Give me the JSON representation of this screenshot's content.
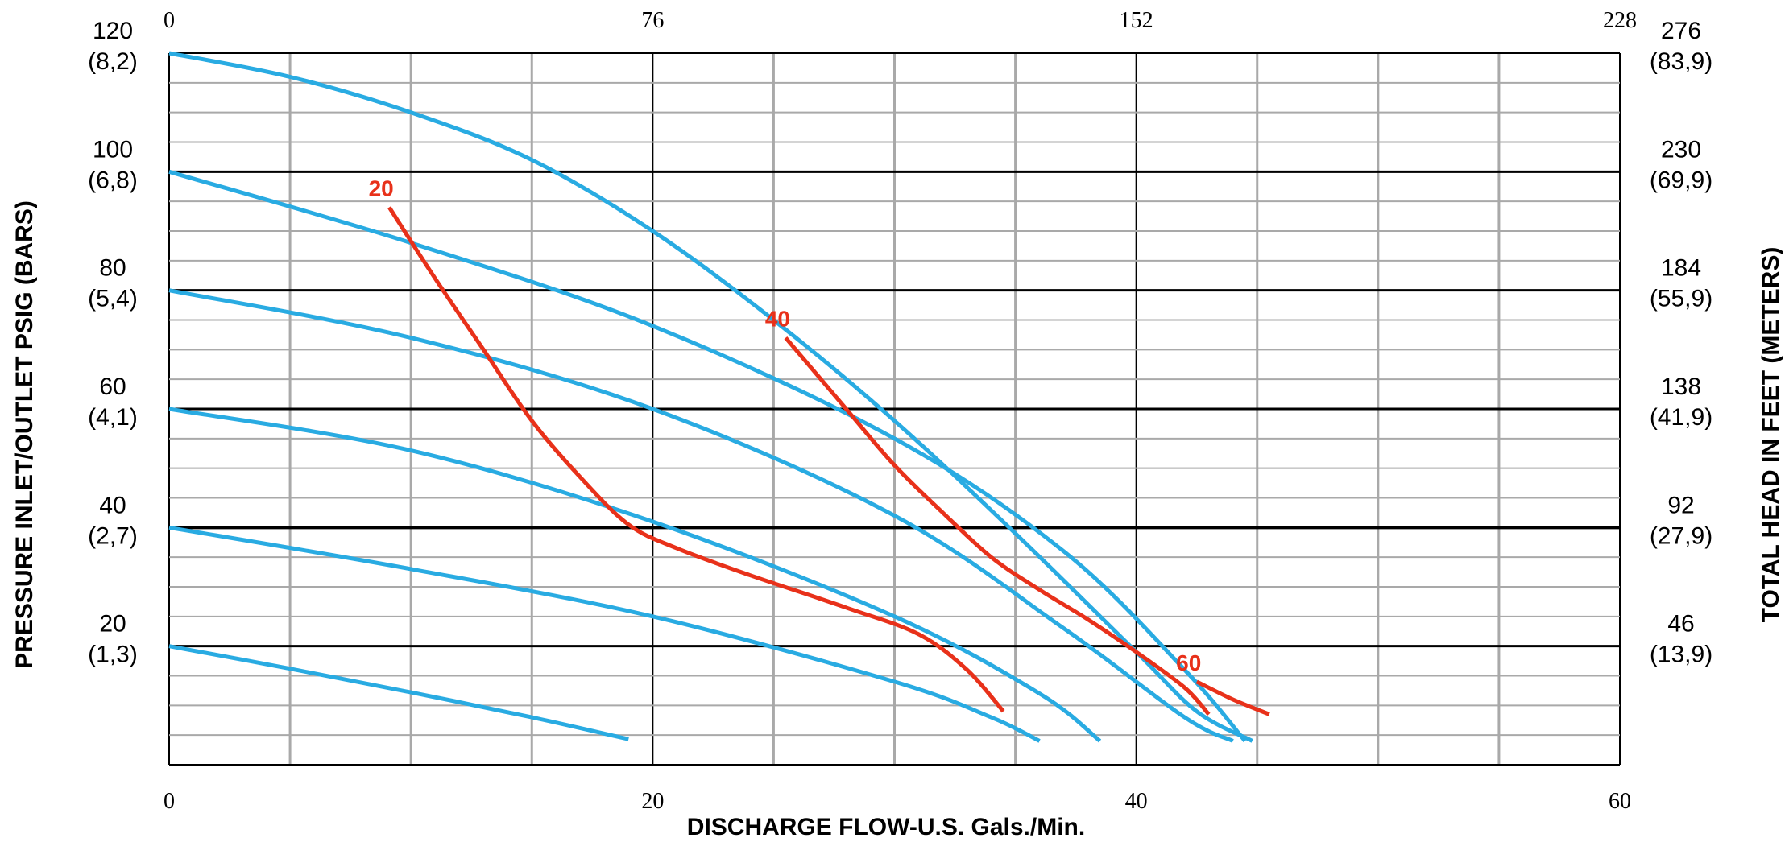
{
  "chart_data": {
    "type": "line",
    "xlabel": "DISCHARGE FLOW-U.S. Gals./Min.",
    "ylabel_left": "PRESSURE INLET/OUTLET PSIG (BARS)",
    "ylabel_right": "TOTAL HEAD IN FEET (METERS)",
    "xlim": [
      0,
      60
    ],
    "ylim": [
      0,
      120
    ],
    "x_ticks": [
      "0",
      "20",
      "40",
      "60"
    ],
    "x_top_ticks": [
      "0",
      "76",
      "152",
      "228"
    ],
    "y_left_ticks": [
      {
        "psig": "20",
        "bar": "(1,3)"
      },
      {
        "psig": "40",
        "bar": "(2,7)"
      },
      {
        "psig": "60",
        "bar": "(4,1)"
      },
      {
        "psig": "80",
        "bar": "(5,4)"
      },
      {
        "psig": "100",
        "bar": "(6,8)"
      },
      {
        "psig": "120",
        "bar": "(8,2)"
      }
    ],
    "y_right_ticks": [
      {
        "feet": "46",
        "meters": "(13,9)"
      },
      {
        "feet": "92",
        "meters": "(27,9)"
      },
      {
        "feet": "138",
        "meters": "(41,9)"
      },
      {
        "feet": "184",
        "meters": "(55,9)"
      },
      {
        "feet": "230",
        "meters": "(69,9)"
      },
      {
        "feet": "276",
        "meters": "(83,9)"
      }
    ],
    "grid": true,
    "colors": {
      "pressure_curves": "#29abe2",
      "air_curves": "#e8311a"
    },
    "series": [
      {
        "group": "pressure",
        "points": [
          [
            0,
            20
          ],
          [
            5,
            16.2
          ],
          [
            10,
            12.2
          ],
          [
            15,
            8
          ],
          [
            19,
            4.3
          ]
        ]
      },
      {
        "group": "pressure",
        "points": [
          [
            0,
            40
          ],
          [
            10,
            33
          ],
          [
            20,
            25
          ],
          [
            30,
            14
          ],
          [
            34,
            8
          ],
          [
            36,
            4
          ]
        ]
      },
      {
        "group": "pressure",
        "points": [
          [
            0,
            60
          ],
          [
            10,
            53
          ],
          [
            20,
            41
          ],
          [
            30,
            25
          ],
          [
            36,
            12
          ],
          [
            38.5,
            4
          ]
        ]
      },
      {
        "group": "pressure",
        "points": [
          [
            0,
            80
          ],
          [
            10,
            72
          ],
          [
            20,
            60
          ],
          [
            30,
            42
          ],
          [
            37,
            23
          ],
          [
            42,
            8
          ],
          [
            44,
            4
          ]
        ]
      },
      {
        "group": "pressure",
        "points": [
          [
            0,
            100
          ],
          [
            10,
            88
          ],
          [
            20,
            74
          ],
          [
            30,
            55
          ],
          [
            37,
            36
          ],
          [
            42,
            16
          ],
          [
            44.5,
            4
          ]
        ]
      },
      {
        "group": "pressure",
        "points": [
          [
            0,
            120
          ],
          [
            5,
            116
          ],
          [
            10,
            110
          ],
          [
            15,
            102
          ],
          [
            20,
            90
          ],
          [
            25,
            75
          ],
          [
            30,
            58
          ],
          [
            35,
            39
          ],
          [
            40,
            19
          ],
          [
            42.5,
            9
          ],
          [
            44.8,
            4
          ]
        ]
      }
    ],
    "air_series": [
      {
        "label": "20",
        "points": [
          [
            9.1,
            94
          ],
          [
            11,
            82
          ],
          [
            13,
            70
          ],
          [
            15,
            58
          ],
          [
            17,
            48.5
          ],
          [
            19,
            40.5
          ],
          [
            21,
            36.5
          ],
          [
            24,
            32
          ],
          [
            28,
            26.5
          ],
          [
            31,
            22
          ],
          [
            33,
            16
          ],
          [
            34.5,
            9
          ]
        ]
      },
      {
        "label": "40",
        "points": [
          [
            25.5,
            72
          ],
          [
            28,
            60
          ],
          [
            30,
            50.5
          ],
          [
            32,
            42.5
          ],
          [
            34,
            35
          ],
          [
            36,
            29.5
          ],
          [
            38,
            24.5
          ],
          [
            40,
            19
          ],
          [
            42,
            13
          ],
          [
            43,
            8.5
          ]
        ]
      },
      {
        "label": "60",
        "points": [
          [
            42.5,
            14
          ],
          [
            44,
            11
          ],
          [
            45.5,
            8.5
          ]
        ]
      }
    ]
  }
}
